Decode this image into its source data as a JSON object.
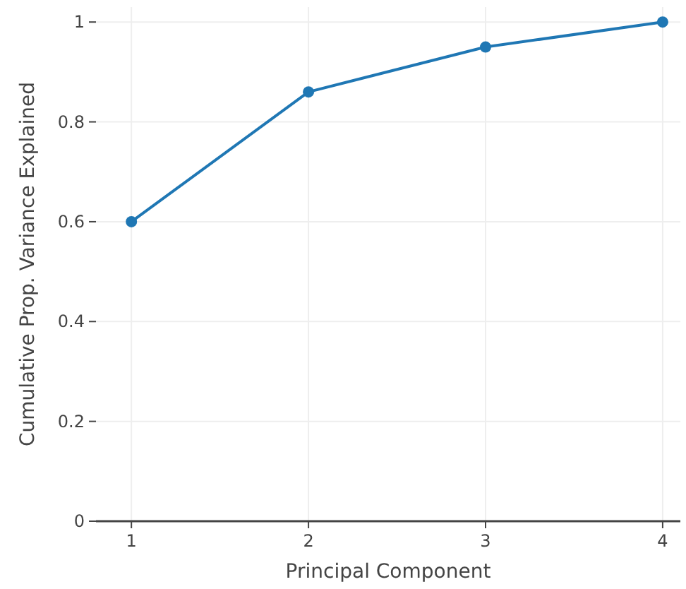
{
  "chart_data": {
    "type": "line",
    "xlabel": "Principal Component",
    "ylabel": "Cumulative Prop. Variance Explained",
    "x": [
      1,
      2,
      3,
      4
    ],
    "series": [
      {
        "color": "#1f77b4",
        "values": [
          0.6,
          0.86,
          0.95,
          1
        ]
      }
    ],
    "xlim": [
      0.8,
      4.1
    ],
    "xticks": [
      1,
      2,
      3,
      4
    ],
    "ylim": [
      0,
      1.03
    ],
    "yticks": [
      0,
      0.2,
      0.4,
      0.6,
      0.8,
      1
    ],
    "grid": true,
    "marker": "circle",
    "line_style": "solid"
  }
}
